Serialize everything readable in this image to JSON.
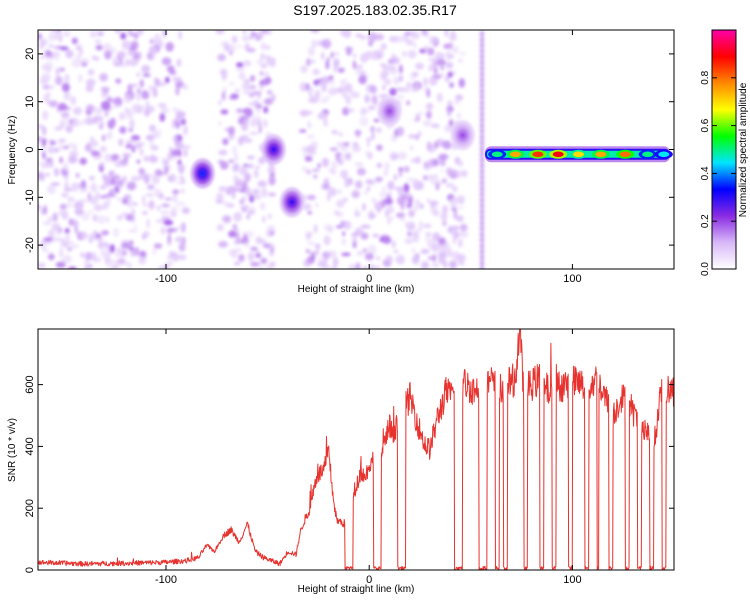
{
  "title": "S197.2025.183.02.35.R17",
  "chart_data": [
    {
      "type": "heatmap",
      "xlabel": "Height of straight line (km)",
      "ylabel": "Frequency (Hz)",
      "xlim": [
        -163,
        150
      ],
      "ylim": [
        -25,
        25
      ],
      "xticks": [
        -100,
        0,
        100
      ],
      "yticks": [
        20,
        10,
        0,
        -10,
        -20
      ],
      "grid": false,
      "colorbar": {
        "label": "Normalized spectral amplitude",
        "range": [
          0,
          1
        ],
        "ticks": [
          0.0,
          0.2,
          0.4,
          0.6,
          0.8
        ],
        "tick_labels": [
          "0.0",
          "0.2",
          "0.4",
          "0.6",
          "0.8"
        ],
        "colormap": [
          "#ffffff",
          "#d8b8f8",
          "#8a2be2",
          "#0000ff",
          "#00e5ff",
          "#00ff00",
          "#ffff00",
          "#ff8800",
          "#ff0000",
          "#ff00aa"
        ]
      },
      "noise_region_km": [
        -163,
        57
      ],
      "empty_gaps_km": [
        [
          -90,
          -74
        ],
        [
          -47,
          -33
        ],
        [
          47,
          57
        ]
      ],
      "features": [
        {
          "x": -82,
          "freq": -5,
          "amp": 0.35
        },
        {
          "x": -47,
          "freq": 0,
          "amp": 0.3
        },
        {
          "x": -38,
          "freq": -11,
          "amp": 0.3
        },
        {
          "x": 10,
          "freq": 8,
          "amp": 0.2
        },
        {
          "x": 46,
          "freq": 3,
          "amp": 0.2
        }
      ],
      "carrier": {
        "x_range": [
          57,
          148
        ],
        "freq": -1,
        "peaks": [
          {
            "x": 63,
            "amp": 0.5
          },
          {
            "x": 72,
            "amp": 0.75
          },
          {
            "x": 83,
            "amp": 0.85
          },
          {
            "x": 93,
            "amp": 0.9
          },
          {
            "x": 103,
            "amp": 0.7
          },
          {
            "x": 114,
            "amp": 0.75
          },
          {
            "x": 126,
            "amp": 0.8
          },
          {
            "x": 137,
            "amp": 0.5
          },
          {
            "x": 145,
            "amp": 0.45
          }
        ]
      }
    },
    {
      "type": "line",
      "xlabel": "Height of straight line (km)",
      "ylabel": "SNR (10 * v/v)",
      "xlim": [
        -163,
        150
      ],
      "ylim": [
        0,
        780
      ],
      "xticks": [
        -100,
        0,
        100
      ],
      "yticks": [
        0,
        200,
        400,
        600
      ],
      "grid": false,
      "series": [
        {
          "color": "#e8322e",
          "x": [
            -163,
            -140,
            -120,
            -100,
            -90,
            -84,
            -80,
            -76,
            -72,
            -68,
            -64,
            -60,
            -56,
            -52,
            -48,
            -44,
            -40,
            -36,
            -34,
            -32,
            -30,
            -28,
            -26,
            -22,
            -20,
            -18,
            -16,
            -12,
            -10,
            -8,
            -6,
            -4,
            -2,
            0,
            2,
            4,
            6,
            8,
            10,
            12,
            14,
            16,
            18,
            20,
            22,
            24,
            26,
            28,
            30,
            32,
            34,
            36,
            38,
            40,
            44,
            48,
            52,
            56,
            60,
            64,
            68,
            72,
            74,
            76,
            80,
            84,
            88,
            92,
            96,
            100,
            104,
            108,
            112,
            116,
            120,
            124,
            128,
            132,
            136,
            140,
            144,
            148
          ],
          "y": [
            25,
            20,
            22,
            25,
            30,
            40,
            80,
            60,
            110,
            130,
            90,
            150,
            60,
            40,
            30,
            20,
            60,
            50,
            120,
            160,
            180,
            240,
            300,
            330,
            380,
            250,
            160,
            150,
            160,
            220,
            280,
            320,
            300,
            340,
            360,
            440,
            380,
            420,
            470,
            420,
            480,
            430,
            530,
            560,
            520,
            470,
            430,
            400,
            390,
            450,
            500,
            540,
            580,
            560,
            610,
            600,
            580,
            600,
            610,
            580,
            600,
            620,
            780,
            580,
            600,
            620,
            580,
            590,
            600,
            610,
            600,
            590,
            620,
            560,
            500,
            560,
            540,
            480,
            460,
            400,
            590,
            580
          ],
          "dropouts_to_zero": [
            [
              -12,
              -8
            ],
            [
              2,
              6
            ],
            [
              14,
              18
            ],
            [
              42,
              46
            ],
            [
              54,
              58
            ],
            [
              62,
              64
            ],
            [
              66,
              68
            ],
            [
              76,
              78
            ],
            [
              84,
              86
            ],
            [
              90,
              92
            ],
            [
              98,
              100
            ],
            [
              106,
              108
            ],
            [
              112,
              113
            ],
            [
              118,
              120
            ],
            [
              126,
              128
            ],
            [
              132,
              134
            ],
            [
              138,
              140
            ],
            [
              144,
              146
            ]
          ]
        }
      ]
    }
  ]
}
